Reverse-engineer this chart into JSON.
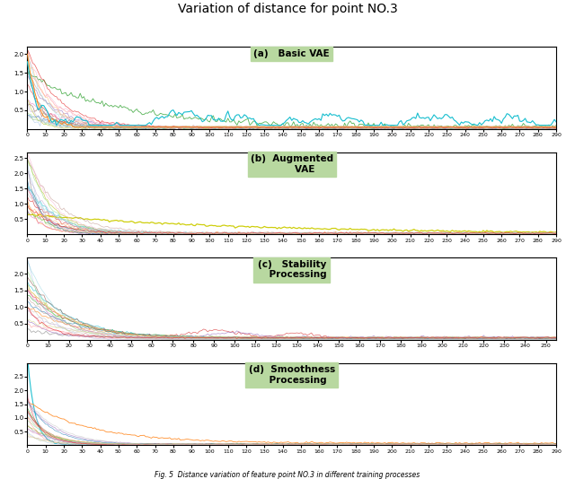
{
  "title": "Variation of distance for point NO.3",
  "subplots": [
    {
      "label": "(a)   Basic VAE",
      "ylim_top": 2.2,
      "x_max": 290,
      "note": "basic_vae",
      "yticks": [
        0.5,
        1.0,
        1.5,
        2.0
      ]
    },
    {
      "label": "(b)  Augmented\n        VAE",
      "ylim_top": 2.7,
      "x_max": 290,
      "note": "augmented_vae",
      "yticks": [
        0.5,
        1.0,
        1.5,
        2.0,
        2.5
      ]
    },
    {
      "label": "(c)   Stability\n    Processing",
      "ylim_top": 2.5,
      "x_max": 255,
      "note": "stability",
      "yticks": [
        0.5,
        1.0,
        1.5,
        2.0
      ]
    },
    {
      "label": "(d)  Smoothness\n    Processing",
      "ylim_top": 3.0,
      "x_max": 290,
      "note": "smoothness",
      "yticks": [
        0.5,
        1.0,
        1.5,
        2.0,
        2.5
      ]
    }
  ],
  "label_box_color": "#b8d8a0",
  "n_lines": 21,
  "seed": 7,
  "fig_caption": "Fig. 5  Distance variation of feature point NO.3 in different training processes"
}
